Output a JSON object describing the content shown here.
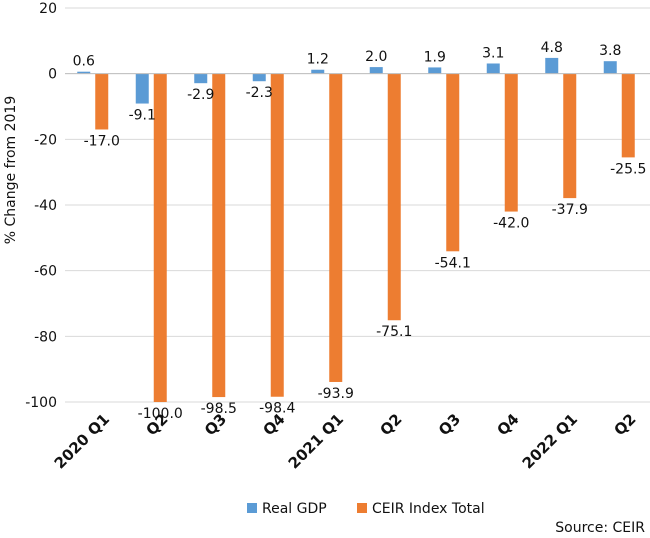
{
  "chart_data": {
    "type": "bar",
    "categories": [
      "2020 Q1",
      "Q2",
      "Q3",
      "Q4",
      "2021 Q1",
      "Q2",
      "Q3",
      "Q4",
      "2022 Q1",
      "Q2"
    ],
    "series": [
      {
        "name": "Real GDP",
        "color": "#5B9BD5",
        "values": [
          0.6,
          -9.1,
          -2.9,
          -2.3,
          1.2,
          2.0,
          1.9,
          3.1,
          4.8,
          3.8
        ]
      },
      {
        "name": "CEIR Index Total",
        "color": "#ED7D31",
        "values": [
          -17.0,
          -100.0,
          -98.5,
          -98.4,
          -93.9,
          -75.1,
          -54.1,
          -42.0,
          -37.9,
          -25.5
        ]
      }
    ],
    "ylabel": "% Change from 2019",
    "ylim": [
      -100,
      20
    ],
    "yticks": [
      20,
      0,
      -20,
      -40,
      -60,
      -80,
      -100
    ],
    "grid": true,
    "legend": "bottom",
    "source": "Source: CEIR"
  }
}
